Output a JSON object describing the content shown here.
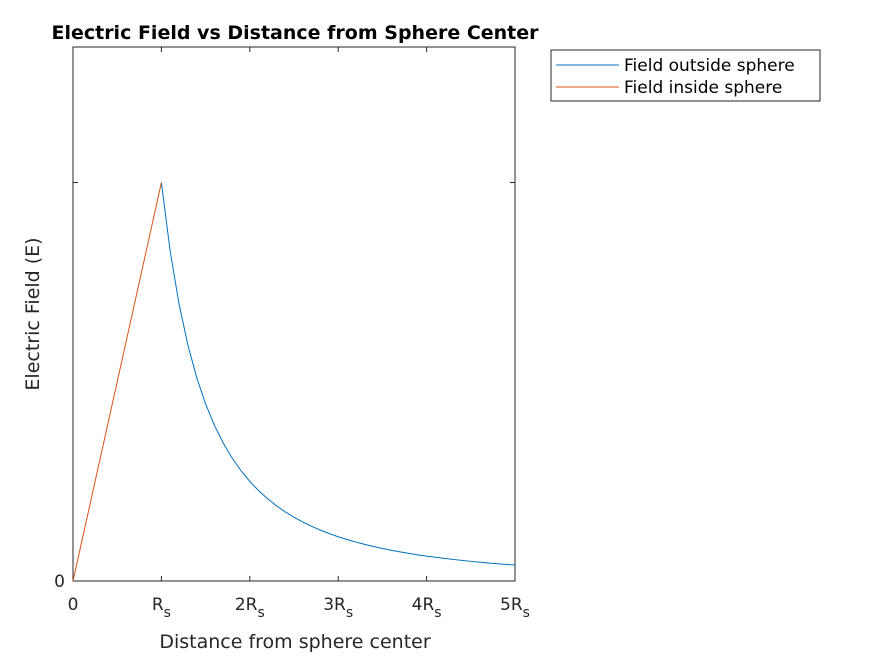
{
  "chart_data": {
    "type": "line",
    "title": "Electric Field vs Distance from Sphere Center",
    "xlabel": "Distance from sphere center",
    "ylabel": "Electric Field (E)",
    "xlim": [
      0,
      5
    ],
    "ylim": [
      0,
      1.34
    ],
    "grid": false,
    "legend_position": "outside-top-right",
    "xticks": [
      {
        "value": 0,
        "main": "0",
        "sub": ""
      },
      {
        "value": 1,
        "main": "R",
        "sub": "s"
      },
      {
        "value": 2,
        "main": "2R",
        "sub": "s"
      },
      {
        "value": 3,
        "main": "3R",
        "sub": "s"
      },
      {
        "value": 4,
        "main": "4R",
        "sub": "s"
      },
      {
        "value": 5,
        "main": "5R",
        "sub": "s"
      }
    ],
    "yticks": [
      {
        "value": 0,
        "label": "0"
      },
      {
        "value": 1,
        "label": ""
      }
    ],
    "series": [
      {
        "name": "Field outside sphere",
        "color": "#0072BD",
        "x": [
          1,
          1.1,
          1.2,
          1.3,
          1.4,
          1.5,
          1.6,
          1.7,
          1.8,
          1.9,
          2,
          2.1,
          2.2,
          2.3,
          2.4,
          2.5,
          2.6,
          2.7,
          2.8,
          2.9,
          3,
          3.1,
          3.2,
          3.3,
          3.4,
          3.5,
          3.6,
          3.7,
          3.8,
          3.9,
          4,
          4.1,
          4.2,
          4.3,
          4.4,
          4.5,
          4.6,
          4.7,
          4.8,
          4.9,
          5
        ],
        "y": [
          1,
          0.8264,
          0.6944,
          0.5917,
          0.5102,
          0.4444,
          0.3906,
          0.346,
          0.3086,
          0.277,
          0.25,
          0.2268,
          0.2066,
          0.189,
          0.1736,
          0.16,
          0.1479,
          0.1372,
          0.1276,
          0.1189,
          0.1111,
          0.1041,
          0.0977,
          0.0918,
          0.0865,
          0.0816,
          0.0772,
          0.073,
          0.0693,
          0.0657,
          0.0625,
          0.0595,
          0.0567,
          0.0541,
          0.0517,
          0.0494,
          0.0473,
          0.0453,
          0.0434,
          0.0416,
          0.04
        ]
      },
      {
        "name": "Field inside sphere",
        "color": "#D95319",
        "x": [
          0,
          1
        ],
        "y": [
          0,
          1
        ]
      }
    ]
  }
}
